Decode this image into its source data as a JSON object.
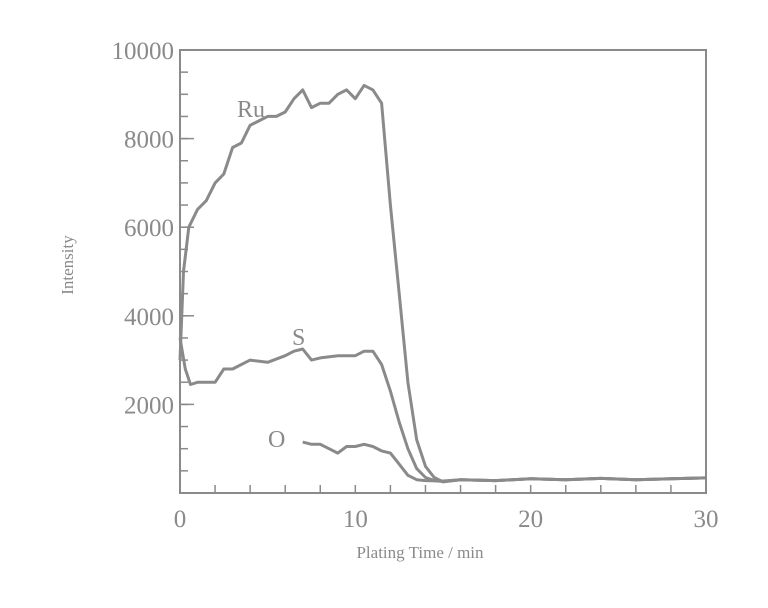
{
  "chart_data": {
    "type": "line",
    "title": "",
    "xlabel": "Plating Time / min",
    "ylabel": "Intensity",
    "xlim": [
      0,
      30
    ],
    "ylim": [
      0,
      10000
    ],
    "x_ticks": [
      0,
      10,
      20,
      30
    ],
    "y_ticks": [
      2000,
      4000,
      6000,
      8000,
      10000
    ],
    "x_tick_labels": [
      "0",
      "10",
      "20",
      "30"
    ],
    "y_tick_labels": [
      "2000",
      "4000",
      "6000",
      "8000",
      "10000"
    ],
    "grid": false,
    "legend": "inline labels",
    "line_color": "#8a8a8a",
    "series": [
      {
        "name": "Ru",
        "label": "Ru",
        "x": [
          0,
          0.2,
          0.5,
          1,
          1.5,
          2,
          2.5,
          3,
          3.5,
          4,
          4.5,
          5,
          5.5,
          6,
          6.5,
          7,
          7.5,
          8,
          8.5,
          9,
          9.5,
          10,
          10.5,
          11,
          11.5,
          12,
          12.5,
          13,
          13.5,
          14,
          14.5,
          15,
          16,
          18,
          20,
          22,
          24,
          26,
          28,
          30
        ],
        "y": [
          3000,
          5000,
          6000,
          6400,
          6600,
          7000,
          7200,
          7800,
          7900,
          8300,
          8400,
          8500,
          8500,
          8600,
          8900,
          9100,
          8700,
          8800,
          8800,
          9000,
          9100,
          8900,
          9200,
          9100,
          8800,
          6500,
          4500,
          2500,
          1200,
          600,
          350,
          250,
          300,
          280,
          320,
          300,
          330,
          300,
          320,
          340
        ]
      },
      {
        "name": "S",
        "label": "S",
        "x": [
          0,
          0.3,
          0.6,
          1,
          2,
          2.5,
          3,
          4,
          5,
          6,
          6.5,
          7,
          7.5,
          8,
          9,
          10,
          10.5,
          11,
          11.5,
          12,
          12.5,
          13,
          13.5,
          14,
          14.5,
          15,
          16,
          18,
          20,
          22,
          24,
          26,
          28,
          30
        ],
        "y": [
          3500,
          2800,
          2450,
          2500,
          2500,
          2800,
          2800,
          3000,
          2950,
          3100,
          3200,
          3250,
          3000,
          3050,
          3100,
          3100,
          3200,
          3200,
          2900,
          2300,
          1600,
          1000,
          550,
          350,
          280,
          260,
          300,
          280,
          320,
          300,
          330,
          300,
          320,
          340
        ]
      },
      {
        "name": "O",
        "label": "O",
        "x": [
          7,
          7.5,
          8,
          8.5,
          9,
          9.5,
          10,
          10.5,
          11,
          11.5,
          12,
          12.5,
          13,
          13.5,
          14,
          15,
          16,
          18,
          20,
          22,
          24,
          26,
          28,
          30
        ],
        "y": [
          1150,
          1100,
          1100,
          1000,
          900,
          1050,
          1050,
          1100,
          1050,
          950,
          900,
          650,
          400,
          300,
          280,
          270,
          300,
          280,
          320,
          300,
          330,
          300,
          320,
          340
        ]
      }
    ]
  }
}
